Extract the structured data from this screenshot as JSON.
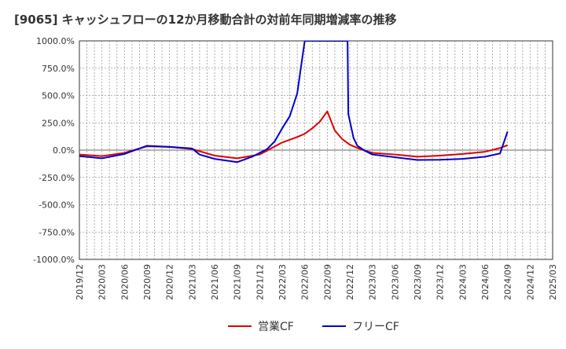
{
  "chart_data": {
    "type": "line",
    "title": "[9065]  キャッシュフローの12か月移動合計の対前年同期増減率の推移",
    "xlabel": "",
    "ylabel": "",
    "ylim": [
      -1000,
      1000
    ],
    "y_ticks": [
      1000,
      750,
      500,
      250,
      0,
      -250,
      -500,
      -750,
      -1000
    ],
    "y_tick_labels": [
      "1000.0%",
      "750.0%",
      "500.0%",
      "250.0%",
      "0.0%",
      "-250.0%",
      "-500.0%",
      "-750.0%",
      "-1000.0%"
    ],
    "x_tick_labels": [
      "2019/12",
      "2020/03",
      "2020/06",
      "2020/09",
      "2020/12",
      "2021/03",
      "2021/06",
      "2021/09",
      "2021/12",
      "2022/03",
      "2022/06",
      "2022/09",
      "2022/12",
      "2023/03",
      "2023/06",
      "2023/09",
      "2023/12",
      "2024/03",
      "2024/06",
      "2024/09",
      "2024/12",
      "2025/03"
    ],
    "grid": true,
    "legend_position": "bottom",
    "series": [
      {
        "name": "営業CF",
        "color": "#dd0000",
        "points": [
          [
            0,
            -40
          ],
          [
            3,
            -55
          ],
          [
            6,
            -25
          ],
          [
            9,
            35
          ],
          [
            12,
            30
          ],
          [
            15,
            10
          ],
          [
            18,
            -50
          ],
          [
            21,
            -75
          ],
          [
            24,
            -40
          ],
          [
            27,
            70
          ],
          [
            29,
            120
          ],
          [
            30,
            150
          ],
          [
            31,
            200
          ],
          [
            32,
            260
          ],
          [
            33,
            355
          ],
          [
            34,
            180
          ],
          [
            35,
            100
          ],
          [
            36,
            50
          ],
          [
            37,
            20
          ],
          [
            38,
            -5
          ],
          [
            39,
            -25
          ],
          [
            42,
            -40
          ],
          [
            45,
            -60
          ],
          [
            48,
            -50
          ],
          [
            51,
            -35
          ],
          [
            54,
            -15
          ],
          [
            56,
            20
          ],
          [
            57,
            45
          ]
        ]
      },
      {
        "name": "フリーCF",
        "color": "#0000cc",
        "points": [
          [
            0,
            -55
          ],
          [
            3,
            -75
          ],
          [
            6,
            -35
          ],
          [
            9,
            40
          ],
          [
            12,
            30
          ],
          [
            15,
            15
          ],
          [
            16,
            -40
          ],
          [
            18,
            -80
          ],
          [
            21,
            -110
          ],
          [
            23,
            -60
          ],
          [
            25,
            10
          ],
          [
            26,
            80
          ],
          [
            27,
            200
          ],
          [
            28,
            310
          ],
          [
            29,
            520
          ],
          [
            30,
            1000
          ],
          [
            35.7,
            1000
          ],
          [
            35.8,
            330
          ],
          [
            36.5,
            110
          ],
          [
            37,
            40
          ],
          [
            38,
            -5
          ],
          [
            39,
            -40
          ],
          [
            42,
            -65
          ],
          [
            45,
            -90
          ],
          [
            48,
            -88
          ],
          [
            51,
            -80
          ],
          [
            54,
            -60
          ],
          [
            56,
            -30
          ],
          [
            57,
            170
          ]
        ]
      }
    ]
  }
}
